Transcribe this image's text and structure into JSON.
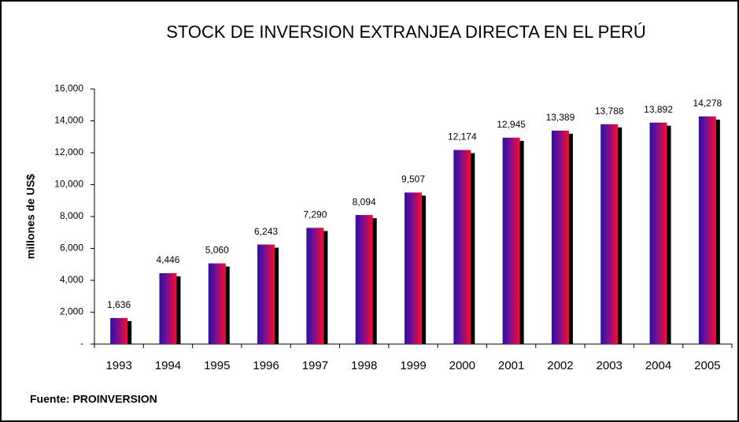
{
  "chart_data": {
    "type": "bar",
    "title": "STOCK DE INVERSION EXTRANJEA DIRECTA EN EL PERÚ",
    "y_label": "millones de US$",
    "source": "Fuente: PROINVERSION",
    "categories": [
      "1993",
      "1994",
      "1995",
      "1996",
      "1997",
      "1998",
      "1999",
      "2000",
      "2001",
      "2002",
      "2003",
      "2004",
      "2005"
    ],
    "values": [
      1636,
      4446,
      5060,
      6243,
      7290,
      8094,
      9507,
      12174,
      12945,
      13389,
      13788,
      13892,
      14278
    ],
    "value_labels": [
      "1,636",
      "4,446",
      "5,060",
      "6,243",
      "7,290",
      "8,094",
      "9,507",
      "12,174",
      "12,945",
      "13,389",
      "13,788",
      "13,892",
      "14,278"
    ],
    "ylim": [
      0,
      16000
    ],
    "yticks": [
      {
        "value": 0,
        "label": "-"
      },
      {
        "value": 2000,
        "label": "2,000"
      },
      {
        "value": 4000,
        "label": "4,000"
      },
      {
        "value": 6000,
        "label": "6,000"
      },
      {
        "value": 8000,
        "label": "8,000"
      },
      {
        "value": 10000,
        "label": "10,000"
      },
      {
        "value": 12000,
        "label": "12,000"
      },
      {
        "value": 14000,
        "label": "14,000"
      },
      {
        "value": 16000,
        "label": "16,000"
      }
    ],
    "grid": false
  }
}
